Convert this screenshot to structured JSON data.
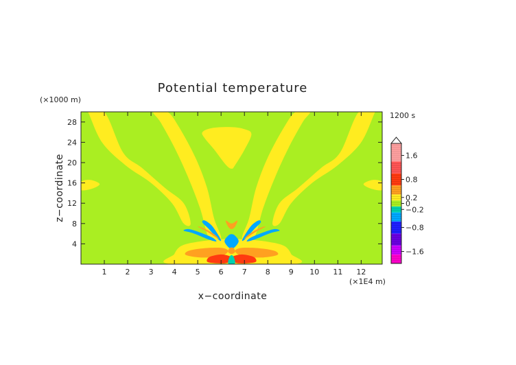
{
  "chart_data": {
    "type": "heatmap",
    "title": "Potential temperature",
    "xlabel": "x−coordinate",
    "ylabel": "z−coordinate",
    "x_unit": "(×1E4 m)",
    "y_unit": "(×1000 m)",
    "time_label": "1200 s",
    "xlim": [
      0,
      12.9
    ],
    "ylim": [
      0,
      30
    ],
    "x_ticks": [
      1,
      2,
      3,
      4,
      5,
      6,
      7,
      8,
      9,
      10,
      11,
      12
    ],
    "y_ticks": [
      4,
      8,
      12,
      16,
      20,
      24,
      28
    ],
    "colorbar": {
      "range": [
        -2.0,
        2.0
      ],
      "tick_values": [
        1.6,
        0.8,
        0.2,
        0,
        -0.2,
        -0.8,
        -1.6
      ],
      "tick_labels": [
        "1.6",
        "0.8",
        "0.2",
        "0",
        "−0.2",
        "−0.8",
        "−1.6"
      ],
      "levels": [
        {
          "from": -2.0,
          "to": -1.7,
          "color": "#ff00cc"
        },
        {
          "from": -1.7,
          "to": -1.4,
          "color": "#cc00ff"
        },
        {
          "from": -1.4,
          "to": -1.0,
          "color": "#6a00e0"
        },
        {
          "from": -1.0,
          "to": -0.6,
          "color": "#1f1fff"
        },
        {
          "from": -0.6,
          "to": -0.3,
          "color": "#00a8ff"
        },
        {
          "from": -0.3,
          "to": -0.1,
          "color": "#00d2b0"
        },
        {
          "from": -0.1,
          "to": 0.1,
          "color": "#aaee22"
        },
        {
          "from": 0.1,
          "to": 0.3,
          "color": "#ffec20"
        },
        {
          "from": 0.3,
          "to": 0.6,
          "color": "#ffa020"
        },
        {
          "from": 0.6,
          "to": 1.0,
          "color": "#ff3a10"
        },
        {
          "from": 1.0,
          "to": 1.4,
          "color": "#ff5555"
        },
        {
          "from": 1.4,
          "to": 2.0,
          "color": "#ffa0a0"
        }
      ]
    },
    "background_color": "#aaee22",
    "regions": [
      {
        "level": 0.2,
        "kind": "band",
        "points": [
          [
            0.2,
            30
          ],
          [
            1.0,
            30
          ],
          [
            1.8,
            22
          ],
          [
            2.6,
            19
          ],
          [
            3.6,
            15
          ],
          [
            4.4,
            12
          ],
          [
            4.7,
            8
          ],
          [
            4.4,
            8
          ],
          [
            3.9,
            12
          ],
          [
            3.0,
            16
          ],
          [
            1.9,
            19.5
          ],
          [
            0.9,
            24
          ],
          [
            0.3,
            30
          ]
        ]
      },
      {
        "level": 0.2,
        "kind": "band",
        "points": [
          [
            12.7,
            30
          ],
          [
            11.9,
            30
          ],
          [
            11.1,
            22
          ],
          [
            10.3,
            19
          ],
          [
            9.3,
            15
          ],
          [
            8.5,
            12
          ],
          [
            8.2,
            8
          ],
          [
            8.5,
            8
          ],
          [
            9.0,
            12
          ],
          [
            9.9,
            16
          ],
          [
            11.0,
            19.5
          ],
          [
            12.0,
            24
          ],
          [
            12.6,
            30
          ]
        ]
      },
      {
        "level": 0.2,
        "kind": "band",
        "points": [
          [
            3.1,
            30
          ],
          [
            3.7,
            30
          ],
          [
            4.2,
            27
          ],
          [
            4.9,
            21
          ],
          [
            5.4,
            15
          ],
          [
            5.7,
            9
          ],
          [
            6.0,
            5
          ],
          [
            5.5,
            5
          ],
          [
            5.1,
            11
          ],
          [
            4.6,
            17
          ],
          [
            4.0,
            23
          ],
          [
            3.4,
            28
          ]
        ]
      },
      {
        "level": 0.2,
        "kind": "band",
        "points": [
          [
            9.8,
            30
          ],
          [
            9.2,
            30
          ],
          [
            8.7,
            27
          ],
          [
            8.0,
            21
          ],
          [
            7.5,
            15
          ],
          [
            7.2,
            9
          ],
          [
            6.9,
            5
          ],
          [
            7.4,
            5
          ],
          [
            7.8,
            11
          ],
          [
            8.3,
            17
          ],
          [
            8.9,
            23
          ],
          [
            9.5,
            28
          ]
        ]
      },
      {
        "level": 0.2,
        "kind": "band",
        "points": [
          [
            0,
            16.2
          ],
          [
            0.4,
            16.6
          ],
          [
            0.8,
            15.8
          ],
          [
            0.5,
            14.9
          ],
          [
            0,
            14.6
          ]
        ]
      },
      {
        "level": 0.2,
        "kind": "band",
        "points": [
          [
            12.9,
            16.2
          ],
          [
            12.5,
            16.6
          ],
          [
            12.1,
            15.8
          ],
          [
            12.4,
            14.9
          ],
          [
            12.9,
            14.6
          ]
        ]
      },
      {
        "level": 0.2,
        "kind": "band",
        "points": [
          [
            5.2,
            26
          ],
          [
            5.6,
            26.8
          ],
          [
            6.4,
            27
          ],
          [
            7.0,
            26.6
          ],
          [
            7.3,
            25.6
          ],
          [
            7.0,
            22.5
          ],
          [
            6.6,
            19.5
          ],
          [
            6.45,
            18.8
          ],
          [
            6.2,
            19.6
          ],
          [
            5.7,
            22.6
          ],
          [
            5.3,
            24.8
          ]
        ]
      },
      {
        "level": 0.2,
        "kind": "band",
        "points": [
          [
            3.9,
            0
          ],
          [
            4.0,
            2.0
          ],
          [
            4.3,
            3.6
          ],
          [
            5.0,
            4.4
          ],
          [
            6.0,
            4.9
          ],
          [
            7.0,
            4.9
          ],
          [
            8.0,
            4.4
          ],
          [
            8.7,
            3.6
          ],
          [
            9.0,
            2.0
          ],
          [
            9.1,
            0
          ]
        ]
      },
      {
        "level": 0.5,
        "kind": "lobe",
        "points": [
          [
            4.5,
            1.8
          ],
          [
            4.6,
            2.6
          ],
          [
            5.2,
            3.1
          ],
          [
            6.0,
            3.2
          ],
          [
            6.3,
            2.6
          ],
          [
            6.0,
            1.6
          ],
          [
            5.2,
            1.3
          ]
        ]
      },
      {
        "level": 0.5,
        "kind": "lobe",
        "points": [
          [
            8.4,
            1.8
          ],
          [
            8.3,
            2.6
          ],
          [
            7.7,
            3.1
          ],
          [
            6.9,
            3.2
          ],
          [
            6.6,
            2.6
          ],
          [
            6.9,
            1.6
          ],
          [
            7.7,
            1.3
          ]
        ]
      },
      {
        "level": 0.8,
        "kind": "core",
        "points": [
          [
            5.4,
            0.5
          ],
          [
            5.5,
            1.4
          ],
          [
            6.0,
            1.9
          ],
          [
            6.4,
            1.5
          ],
          [
            6.5,
            0.8
          ],
          [
            6.2,
            0.2
          ],
          [
            5.7,
            0.2
          ]
        ]
      },
      {
        "level": 0.8,
        "kind": "core",
        "points": [
          [
            7.5,
            0.5
          ],
          [
            7.4,
            1.4
          ],
          [
            6.9,
            1.9
          ],
          [
            6.5,
            1.5
          ],
          [
            6.4,
            0.8
          ],
          [
            6.7,
            0.2
          ],
          [
            7.2,
            0.2
          ]
        ]
      },
      {
        "level": -0.4,
        "kind": "lobe",
        "points": [
          [
            4.4,
            6.6
          ],
          [
            4.8,
            6.1
          ],
          [
            5.5,
            4.8
          ],
          [
            5.8,
            4.5
          ],
          [
            5.6,
            5.3
          ],
          [
            5.0,
            6.4
          ],
          [
            4.6,
            6.9
          ]
        ]
      },
      {
        "level": -0.4,
        "kind": "lobe",
        "points": [
          [
            8.5,
            6.6
          ],
          [
            8.1,
            6.1
          ],
          [
            7.4,
            4.8
          ],
          [
            7.1,
            4.5
          ],
          [
            7.3,
            5.3
          ],
          [
            7.9,
            6.4
          ],
          [
            8.3,
            6.9
          ]
        ]
      },
      {
        "level": -0.4,
        "kind": "lobe",
        "points": [
          [
            5.3,
            8.6
          ],
          [
            5.6,
            7.6
          ],
          [
            5.9,
            5.6
          ],
          [
            6.0,
            4.6
          ],
          [
            5.85,
            5.0
          ],
          [
            5.5,
            6.8
          ],
          [
            5.2,
            8.2
          ]
        ]
      },
      {
        "level": -0.4,
        "kind": "lobe",
        "points": [
          [
            7.6,
            8.6
          ],
          [
            7.3,
            7.6
          ],
          [
            7.0,
            5.6
          ],
          [
            6.9,
            4.6
          ],
          [
            7.05,
            5.0
          ],
          [
            7.4,
            6.8
          ],
          [
            7.7,
            8.2
          ]
        ]
      },
      {
        "level": 0.5,
        "kind": "lobe",
        "points": [
          [
            5.0,
            7.4
          ],
          [
            5.4,
            6.4
          ],
          [
            5.8,
            5.2
          ],
          [
            5.9,
            5.0
          ],
          [
            5.7,
            5.9
          ],
          [
            5.3,
            7.0
          ]
        ]
      },
      {
        "level": 0.5,
        "kind": "lobe",
        "points": [
          [
            7.9,
            7.4
          ],
          [
            7.5,
            6.4
          ],
          [
            7.1,
            5.2
          ],
          [
            7.0,
            5.0
          ],
          [
            7.2,
            5.9
          ],
          [
            7.6,
            7.0
          ]
        ]
      },
      {
        "level": 0.5,
        "kind": "lobe",
        "points": [
          [
            6.2,
            8.6
          ],
          [
            6.3,
            7.4
          ],
          [
            6.45,
            6.9
          ],
          [
            6.6,
            7.4
          ],
          [
            6.7,
            8.6
          ],
          [
            6.45,
            8.0
          ]
        ]
      },
      {
        "level": -1.0,
        "kind": "core",
        "points": [
          [
            6.2,
            4.2
          ],
          [
            6.3,
            5.0
          ],
          [
            6.45,
            5.3
          ],
          [
            6.6,
            5.0
          ],
          [
            6.7,
            4.2
          ],
          [
            6.45,
            3.4
          ]
        ]
      },
      {
        "level": -0.4,
        "kind": "lobe",
        "points": [
          [
            6.15,
            4.4
          ],
          [
            6.3,
            5.6
          ],
          [
            6.45,
            5.9
          ],
          [
            6.6,
            5.6
          ],
          [
            6.75,
            4.4
          ],
          [
            6.45,
            3.0
          ]
        ]
      },
      {
        "level": 0.5,
        "kind": "core",
        "points": [
          [
            6.3,
            2.4
          ],
          [
            6.35,
            3.1
          ],
          [
            6.45,
            3.3
          ],
          [
            6.55,
            3.1
          ],
          [
            6.6,
            2.4
          ],
          [
            6.45,
            2.0
          ]
        ]
      },
      {
        "level": -0.2,
        "kind": "core",
        "points": [
          [
            6.3,
            0.2
          ],
          [
            6.35,
            1.3
          ],
          [
            6.45,
            1.8
          ],
          [
            6.55,
            1.3
          ],
          [
            6.6,
            0.2
          ],
          [
            6.45,
            0.0
          ]
        ]
      }
    ]
  }
}
